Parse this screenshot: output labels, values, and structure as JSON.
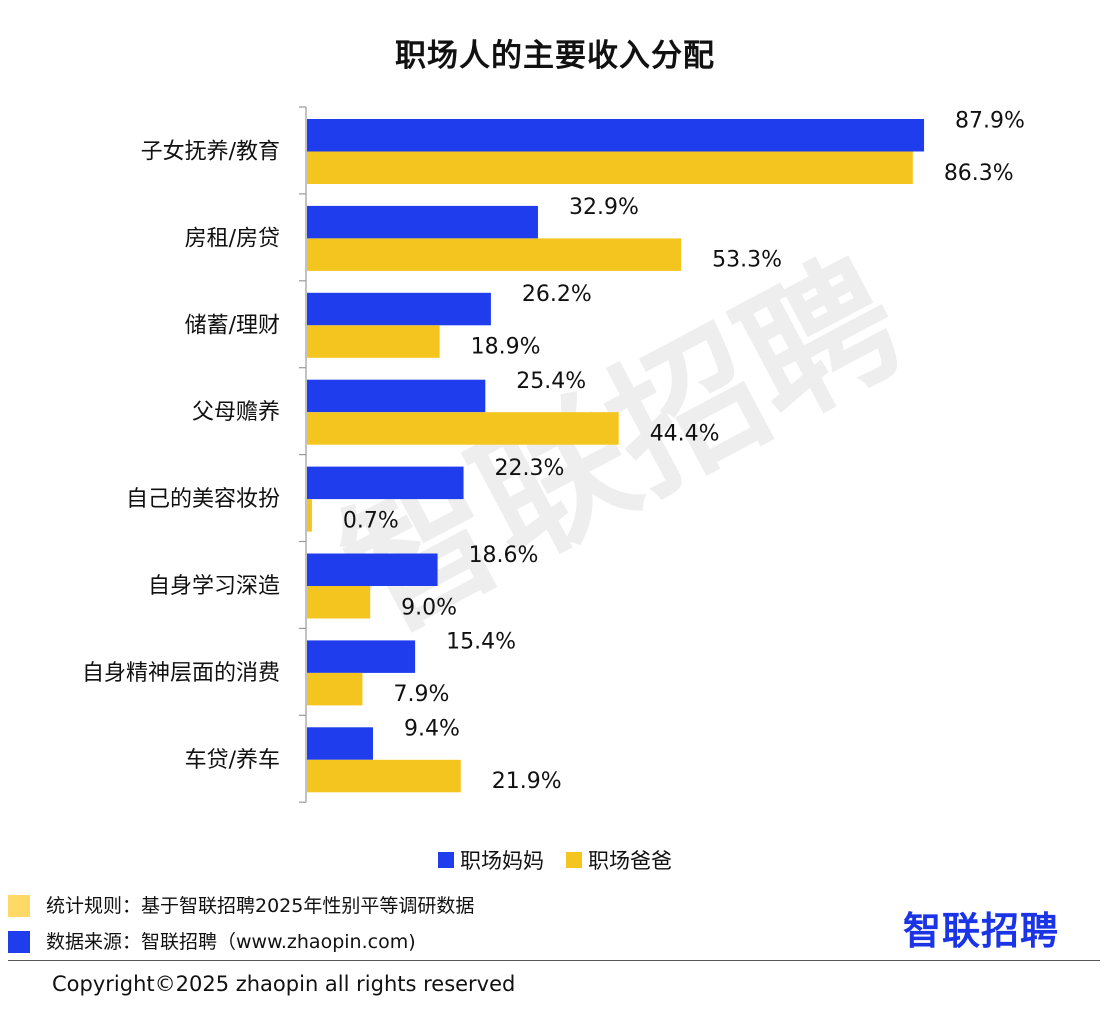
{
  "chart_data": {
    "type": "bar",
    "orientation": "horizontal",
    "title": "职场人的主要收入分配",
    "categories": [
      "子女抚养/教育",
      "房租/房贷",
      "储蓄/理财",
      "父母赡养",
      "自己的美容妆扮",
      "自身学习深造",
      "自身精神层面的消费",
      "车贷/养车"
    ],
    "series": [
      {
        "name": "职场妈妈",
        "color": "#1f3ded",
        "values": [
          87.9,
          32.9,
          26.2,
          25.4,
          22.3,
          18.6,
          15.4,
          9.4
        ],
        "labels": [
          "87.9%",
          "32.9%",
          "26.2%",
          "25.4%",
          "22.3%",
          "18.6%",
          "15.4%",
          "9.4%"
        ]
      },
      {
        "name": "职场爸爸",
        "color": "#f4c51f",
        "values": [
          86.3,
          53.3,
          18.9,
          44.4,
          0.7,
          9.0,
          7.9,
          21.9
        ],
        "labels": [
          "86.3%",
          "53.3%",
          "18.9%",
          "44.4%",
          "0.7%",
          "9.0%",
          "7.9%",
          "21.9%"
        ]
      }
    ],
    "xlim": [
      0,
      100
    ],
    "grid": false,
    "legend_position": "bottom"
  },
  "legend": {
    "mom": "职场妈妈",
    "dad": "职场爸爸"
  },
  "notes": {
    "rule": "统计规则：基于智联招聘2025年性别平等调研数据",
    "source": "数据来源：智联招聘（www.zhaopin.com)",
    "rule_color": "#ffd966",
    "source_color": "#1f3ded"
  },
  "logo": "智联招聘",
  "watermark": "智联招聘",
  "copyright": "Copyright©2025 zhaopin all rights reserved"
}
